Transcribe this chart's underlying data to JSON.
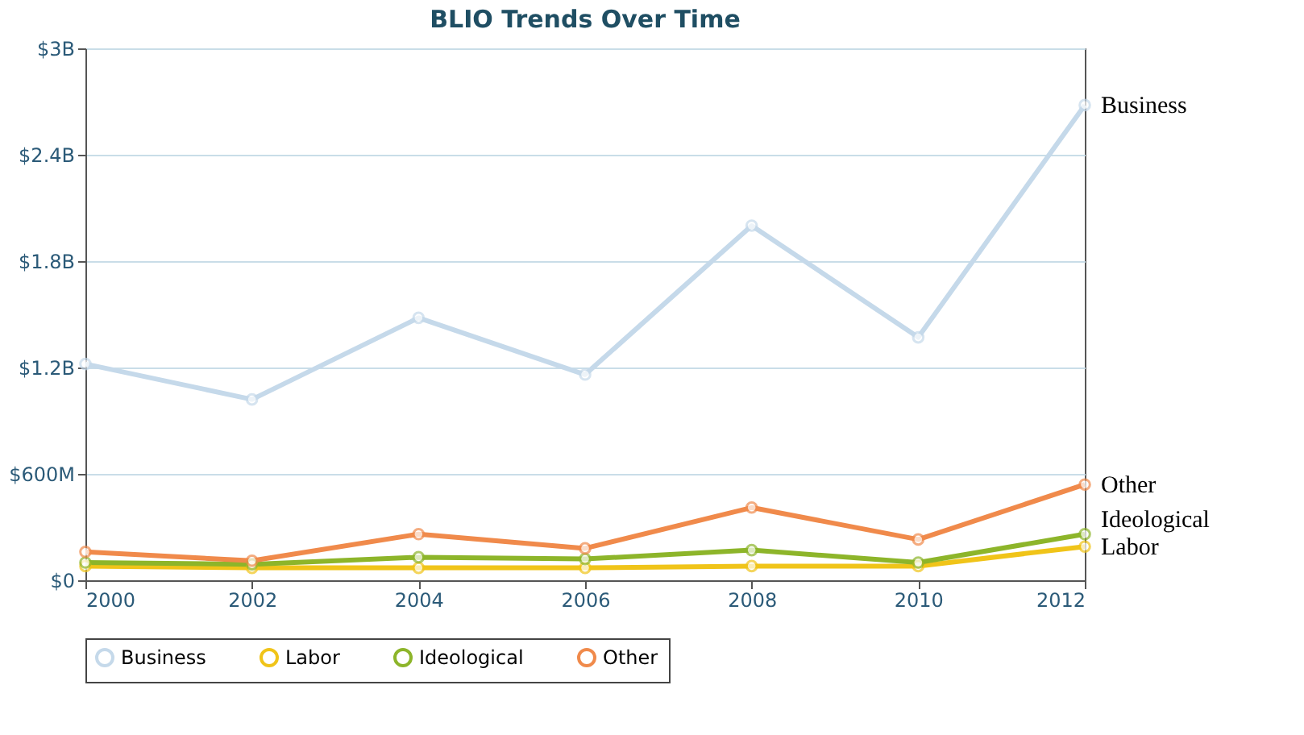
{
  "chart_data": {
    "type": "line",
    "title": "BLIO Trends Over Time",
    "x": [
      2000,
      2002,
      2004,
      2006,
      2008,
      2010,
      2012
    ],
    "series": [
      {
        "name": "Business",
        "color": "#c5d9ea",
        "values": [
          1220000000,
          1020000000,
          1480000000,
          1160000000,
          2000000000,
          1370000000,
          2680000000
        ]
      },
      {
        "name": "Labor",
        "color": "#f0c419",
        "values": [
          80000000,
          70000000,
          70000000,
          70000000,
          80000000,
          80000000,
          190000000
        ]
      },
      {
        "name": "Ideological",
        "color": "#8db52a",
        "values": [
          100000000,
          90000000,
          130000000,
          120000000,
          170000000,
          100000000,
          260000000
        ]
      },
      {
        "name": "Other",
        "color": "#f08a4b",
        "values": [
          160000000,
          110000000,
          260000000,
          180000000,
          410000000,
          230000000,
          540000000
        ]
      }
    ],
    "xlim": [
      2000,
      2012
    ],
    "xticks": [
      2000,
      2002,
      2004,
      2006,
      2008,
      2010,
      2012
    ],
    "ylim": [
      0,
      3000000000
    ],
    "yticks": [
      {
        "value": 0,
        "label": "$0"
      },
      {
        "value": 600000000,
        "label": "$600M"
      },
      {
        "value": 1200000000,
        "label": "$1.2B"
      },
      {
        "value": 1800000000,
        "label": "$1.8B"
      },
      {
        "value": 2400000000,
        "label": "$2.4B"
      },
      {
        "value": 3000000000,
        "label": "$3B"
      }
    ],
    "grid": "y",
    "legend": "bottom",
    "marker": "circle",
    "line_style": "solid"
  }
}
